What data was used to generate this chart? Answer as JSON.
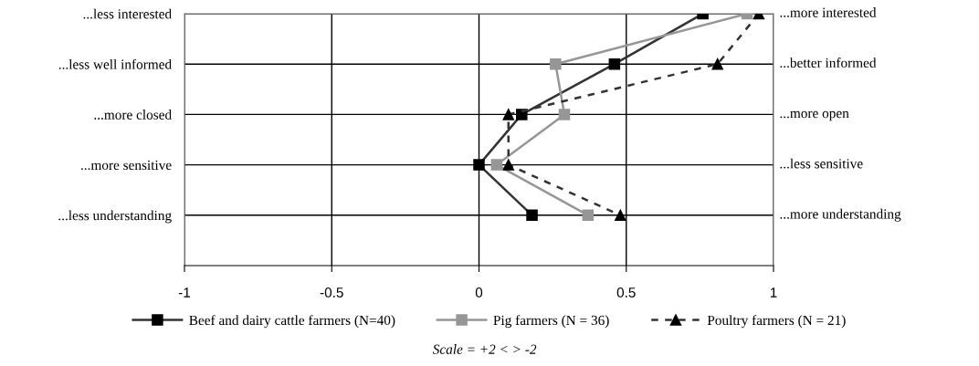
{
  "chart_data": {
    "type": "line",
    "orientation": "horizontal",
    "categories": [
      "...less interested",
      "...less well informed",
      "...more closed",
      "...more sensitive",
      "...less understanding"
    ],
    "xlim": [
      -1,
      1
    ],
    "xticks": [
      -1,
      -0.5,
      0,
      0.5,
      1
    ],
    "grid": true,
    "legend": "bottom",
    "series": [
      {
        "name": "Beef and dairy cattle farmers (N=40)",
        "color": "#000000",
        "marker": "square",
        "line_style": "solid",
        "values": [
          0.76,
          0.46,
          0.145,
          0.0,
          0.18
        ]
      },
      {
        "name": "Pig farmers (N = 36)",
        "color": "#969696",
        "marker": "square",
        "line_style": "solid",
        "values": [
          0.91,
          0.26,
          0.29,
          0.06,
          0.37
        ]
      },
      {
        "name": "Poultry farmers (N = 21)",
        "color": "#000000",
        "marker": "triangle",
        "line_style": "dashed",
        "values": [
          0.95,
          0.81,
          0.1,
          0.1,
          0.48
        ]
      }
    ],
    "annotations": [
      "...more interested",
      "...better informed",
      "...more open",
      "...less sensitive",
      "...more understanding",
      "Scale = +2 < > -2"
    ]
  }
}
